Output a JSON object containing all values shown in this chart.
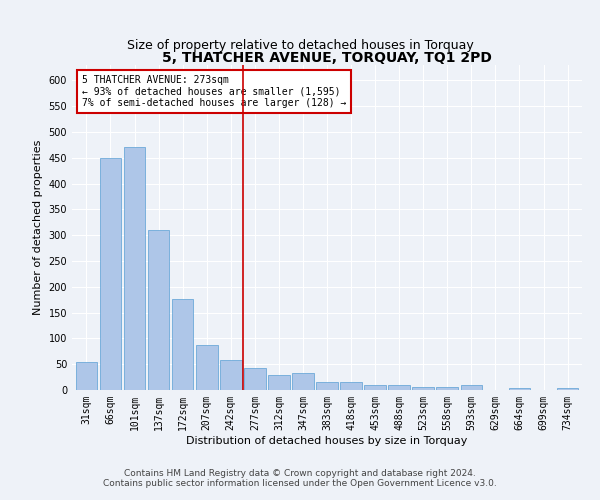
{
  "title": "5, THATCHER AVENUE, TORQUAY, TQ1 2PD",
  "subtitle": "Size of property relative to detached houses in Torquay",
  "xlabel": "Distribution of detached houses by size in Torquay",
  "ylabel": "Number of detached properties",
  "categories": [
    "31sqm",
    "66sqm",
    "101sqm",
    "137sqm",
    "172sqm",
    "207sqm",
    "242sqm",
    "277sqm",
    "312sqm",
    "347sqm",
    "383sqm",
    "418sqm",
    "453sqm",
    "488sqm",
    "523sqm",
    "558sqm",
    "593sqm",
    "629sqm",
    "664sqm",
    "699sqm",
    "734sqm"
  ],
  "values": [
    55,
    450,
    472,
    311,
    176,
    88,
    59,
    43,
    30,
    32,
    15,
    15,
    10,
    10,
    6,
    6,
    9,
    0,
    4,
    0,
    4
  ],
  "bar_color": "#aec6e8",
  "bar_edge_color": "#5a9fd4",
  "vline_x": 6.5,
  "annotation_line1": "5 THATCHER AVENUE: 273sqm",
  "annotation_line2": "← 93% of detached houses are smaller (1,595)",
  "annotation_line3": "7% of semi-detached houses are larger (128) →",
  "annotation_box_color": "#ffffff",
  "annotation_box_edge": "#cc0000",
  "vline_color": "#cc0000",
  "ylim": [
    0,
    630
  ],
  "yticks": [
    0,
    50,
    100,
    150,
    200,
    250,
    300,
    350,
    400,
    450,
    500,
    550,
    600
  ],
  "background_color": "#eef2f8",
  "grid_color": "#ffffff",
  "footer1": "Contains HM Land Registry data © Crown copyright and database right 2024.",
  "footer2": "Contains public sector information licensed under the Open Government Licence v3.0.",
  "title_fontsize": 10,
  "subtitle_fontsize": 9,
  "axis_label_fontsize": 8,
  "tick_fontsize": 7,
  "footer_fontsize": 6.5
}
